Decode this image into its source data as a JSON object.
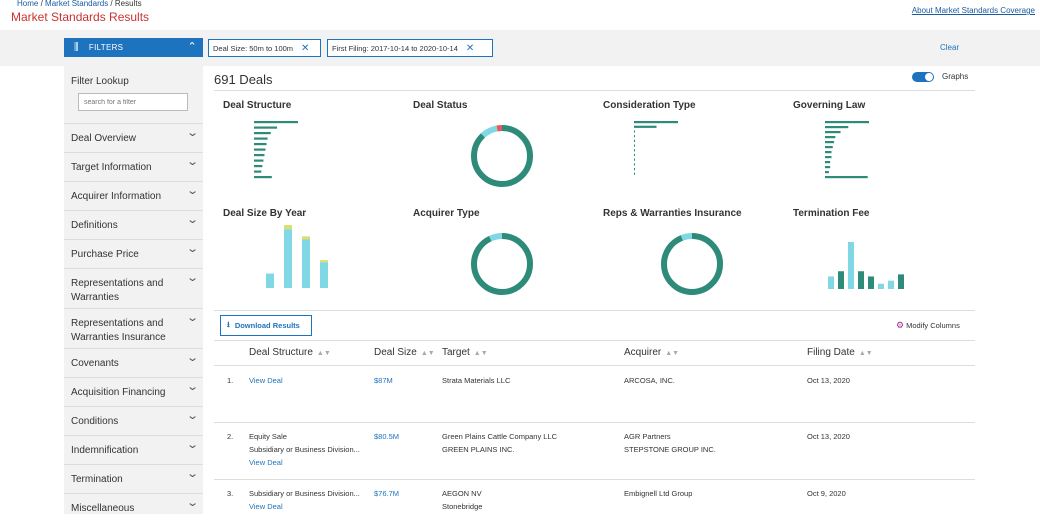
{
  "breadcrumb": {
    "home": "Home",
    "market_standards": "Market Standards",
    "results": "Results",
    "sep": "/"
  },
  "page_title": "Market Standards Results",
  "about_link": "About Market Standards Coverage",
  "filters_button": {
    "label": "FILTERS",
    "icon": "sliders-icon"
  },
  "chips": [
    {
      "label": "Deal Size: 50m to 100m"
    },
    {
      "label": "First Filing: 2017-10-14 to 2020-10-14"
    }
  ],
  "clear_label": "Clear",
  "sidebar": {
    "lookup_title": "Filter Lookup",
    "lookup_placeholder": "search for a filter",
    "items": [
      {
        "label": "Deal Overview"
      },
      {
        "label": "Target Information"
      },
      {
        "label": "Acquirer Information"
      },
      {
        "label": "Definitions"
      },
      {
        "label": "Purchase Price"
      },
      {
        "label": "Representations and Warranties"
      },
      {
        "label": "Representations and Warranties Insurance"
      },
      {
        "label": "Covenants"
      },
      {
        "label": "Acquisition Financing"
      },
      {
        "label": "Conditions"
      },
      {
        "label": "Indemnification"
      },
      {
        "label": "Termination"
      },
      {
        "label": "Miscellaneous"
      }
    ]
  },
  "deals_count": "691 Deals",
  "graphs_toggle": {
    "label": "Graphs",
    "on": true
  },
  "charts": {
    "deal_structure": "Deal Structure",
    "deal_status": "Deal Status",
    "consideration_type": "Consideration Type",
    "governing_law": "Governing Law",
    "deal_size_by_year": "Deal Size By Year",
    "acquirer_type": "Acquirer Type",
    "rwi": "Reps & Warranties Insurance",
    "termination_fee": "Termination Fee"
  },
  "colors": {
    "dark_teal": "#2e8b7a",
    "light_cyan": "#7fd8e3",
    "gold": "#d6e06a",
    "accent_blue": "#1e73be",
    "title_red": "#c8332f"
  },
  "download_label": "Download Results",
  "modify_columns_label": "Modify Columns",
  "table": {
    "headers": [
      "Deal Structure",
      "Deal Size",
      "Target",
      "Acquirer",
      "Filing Date"
    ],
    "rows": [
      {
        "num": "1.",
        "structure": [
          "View Deal"
        ],
        "size": "$87M",
        "target": [
          "Strata Materials LLC"
        ],
        "acquirer": [
          "ARCOSA, INC."
        ],
        "date": "Oct 13, 2020"
      },
      {
        "num": "2.",
        "structure": [
          "Equity Sale",
          "Subsidiary or Business Division...",
          "View Deal"
        ],
        "size": "$80.5M",
        "target": [
          "Green Plains Cattle Company LLC",
          "GREEN PLAINS INC."
        ],
        "acquirer": [
          "AGR Partners",
          "STEPSTONE GROUP INC."
        ],
        "date": "Oct 13, 2020"
      },
      {
        "num": "3.",
        "structure": [
          "Subsidiary or Business Division...",
          "View Deal"
        ],
        "size": "$76.7M",
        "target": [
          "AEGON NV",
          "Stonebridge"
        ],
        "acquirer": [
          "Embignell Ltd Group"
        ],
        "date": "Oct 9, 2020"
      }
    ]
  },
  "chart_data": [
    {
      "type": "bar",
      "title": "Deal Structure",
      "orientation": "horizontal",
      "values": [
        42,
        22,
        16,
        13,
        12,
        11,
        10,
        9,
        8,
        7,
        17
      ]
    },
    {
      "type": "pie",
      "title": "Deal Status",
      "donut": true,
      "values": [
        88,
        9,
        3
      ],
      "colors": [
        "#2e8b7a",
        "#7fd8e3",
        "#e85a5a"
      ]
    },
    {
      "type": "bar",
      "title": "Consideration Type",
      "orientation": "horizontal",
      "values": [
        43,
        22,
        1,
        1,
        1,
        1,
        1,
        1,
        1,
        1,
        1,
        1
      ]
    },
    {
      "type": "bar",
      "title": "Governing Law",
      "orientation": "horizontal",
      "values": [
        34,
        18,
        12,
        8,
        7,
        6,
        5,
        5,
        4,
        4,
        3,
        33
      ]
    },
    {
      "type": "bar",
      "title": "Deal Size By Year",
      "stacked": true,
      "series": [
        {
          "values": [
            14,
            57,
            47,
            25
          ]
        },
        {
          "values": [
            0,
            4,
            3,
            2
          ]
        }
      ]
    },
    {
      "type": "pie",
      "title": "Acquirer Type",
      "donut": true,
      "values": [
        93,
        7
      ],
      "colors": [
        "#2e8b7a",
        "#7fd8e3"
      ]
    },
    {
      "type": "pie",
      "title": "Reps & Warranties Insurance",
      "donut": true,
      "values": [
        94,
        6
      ],
      "colors": [
        "#2e8b7a",
        "#7fd8e3"
      ]
    },
    {
      "type": "bar",
      "title": "Termination Fee",
      "series": [
        {
          "values": [
            12,
            17,
            45,
            17,
            12,
            5,
            8,
            14
          ]
        }
      ],
      "colors": [
        "#7fd8e3",
        "#2e8b7a",
        "#7fd8e3",
        "#2e8b7a",
        "#2e8b7a",
        "#7fd8e3",
        "#7fd8e3",
        "#2e8b7a"
      ]
    }
  ]
}
